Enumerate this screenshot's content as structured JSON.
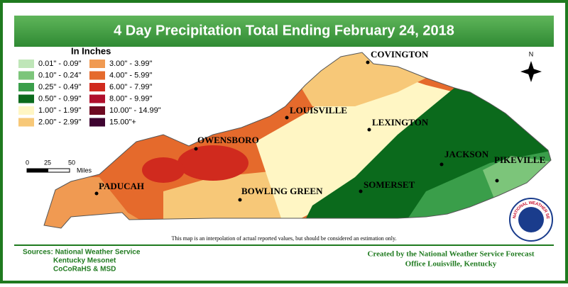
{
  "header": {
    "title": "4 Day Precipitation Total Ending February 24, 2018"
  },
  "legend": {
    "title": "In Inches",
    "items": [
      {
        "label": "0.01\" - 0.09\"",
        "color": "#bfe6b8"
      },
      {
        "label": "0.10\" - 0.24\"",
        "color": "#7cc57a"
      },
      {
        "label": "0.25\" - 0.49\"",
        "color": "#3a9e4a"
      },
      {
        "label": "0.50\" - 0.99\"",
        "color": "#0b6a1c"
      },
      {
        "label": "1.00\" - 1.99\"",
        "color": "#fff6c4"
      },
      {
        "label": "2.00\" - 2.99\"",
        "color": "#f7c878"
      },
      {
        "label": "3.00\" - 3.99\"",
        "color": "#f09a52"
      },
      {
        "label": "4.00\" - 5.99\"",
        "color": "#e56a2c"
      },
      {
        "label": "6.00\" - 7.99\"",
        "color": "#d02a1e"
      },
      {
        "label": "8.00\" - 9.99\"",
        "color": "#b00f2c"
      },
      {
        "label": "10.00\" - 14.99\"",
        "color": "#6e0a22"
      },
      {
        "label": "15.00\"+",
        "color": "#3e0430"
      }
    ]
  },
  "scale": {
    "labels": [
      "0",
      "25",
      "50",
      "Miles"
    ]
  },
  "compass": "N",
  "cities": [
    {
      "name": "COVINGTON"
    },
    {
      "name": "LOUISVILLE"
    },
    {
      "name": "LEXINGTON"
    },
    {
      "name": "OWENSBORO"
    },
    {
      "name": "JACKSON"
    },
    {
      "name": "PIKEVILLE"
    },
    {
      "name": "PADUCAH"
    },
    {
      "name": "BOWLING GREEN"
    },
    {
      "name": "SOMERSET"
    }
  ],
  "note": "This map is an interpolation of actual reported values, but should be considered an estimation only.",
  "footer": {
    "sources": [
      "Sources:  National Weather Service",
      "Kentucky Mesonet",
      "CoCoRaHS & MSD"
    ],
    "credit": [
      "Created by the National Weather Service Forecast",
      "Office Louisville, Kentucky"
    ]
  },
  "logo": "NATIONAL WEATHER SERVICE"
}
